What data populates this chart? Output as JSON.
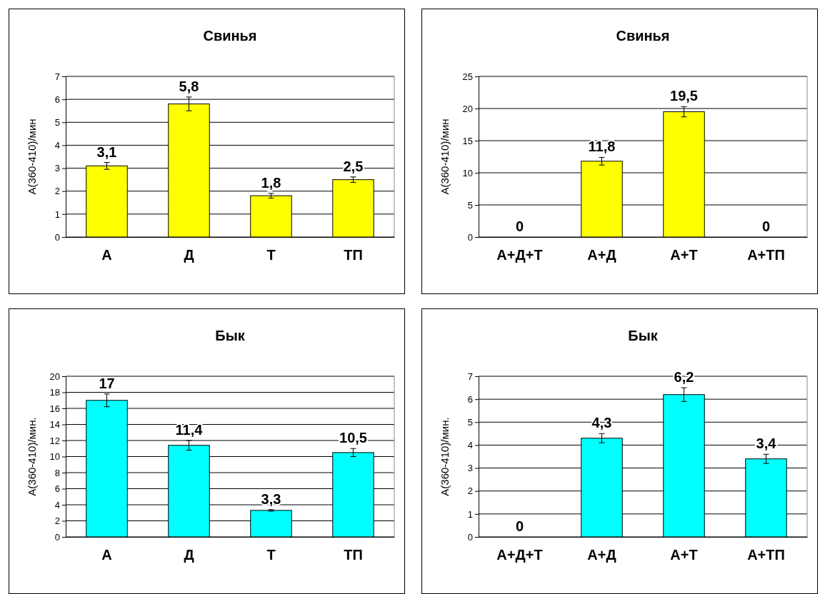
{
  "chart_data": [
    {
      "type": "bar",
      "title": "Свинья",
      "ylabel": "A(360-410)/мин",
      "categories": [
        "А",
        "Д",
        "Т",
        "ТП"
      ],
      "values": [
        3.1,
        5.8,
        1.8,
        2.5
      ],
      "errors": [
        0.15,
        0.3,
        0.1,
        0.12
      ],
      "value_labels": [
        "3,1",
        "5,8",
        "1,8",
        "2,5"
      ],
      "color": "#ffff00",
      "ylim": [
        0,
        7
      ],
      "yticks": [
        0,
        1,
        2,
        3,
        4,
        5,
        6,
        7
      ],
      "grid": "y"
    },
    {
      "type": "bar",
      "title": "Свинья",
      "ylabel": "A(360-410)/мин",
      "categories": [
        "А+Д+Т",
        "А+Д",
        "А+Т",
        "А+ТП"
      ],
      "values": [
        0,
        11.8,
        19.5,
        0
      ],
      "errors": [
        null,
        0.6,
        0.8,
        null
      ],
      "value_labels": [
        "0",
        "11,8",
        "19,5",
        "0"
      ],
      "color": "#ffff00",
      "ylim": [
        0,
        25
      ],
      "yticks": [
        0,
        5,
        10,
        15,
        20,
        25
      ],
      "grid": "y"
    },
    {
      "type": "bar",
      "title": "Бык",
      "ylabel": "A(360-410)/мин.",
      "categories": [
        "А",
        "Д",
        "Т",
        "ТП"
      ],
      "values": [
        17,
        11.4,
        3.3,
        10.5
      ],
      "errors": [
        0.8,
        0.6,
        0.1,
        0.5
      ],
      "value_labels": [
        "17",
        "11,4",
        "3,3",
        "10,5"
      ],
      "color": "#00ffff",
      "ylim": [
        0,
        20
      ],
      "yticks": [
        0,
        2,
        4,
        6,
        8,
        10,
        12,
        14,
        16,
        18,
        20
      ],
      "grid": "y"
    },
    {
      "type": "bar",
      "title": "Бык",
      "ylabel": "A(360-410)/мин.",
      "categories": [
        "А+Д+Т",
        "А+Д",
        "А+Т",
        "А+ТП"
      ],
      "values": [
        0,
        4.3,
        6.2,
        3.4
      ],
      "errors": [
        null,
        0.2,
        0.3,
        0.2
      ],
      "value_labels": [
        "0",
        "4,3",
        "6,2",
        "3,4"
      ],
      "color": "#00ffff",
      "ylim": [
        0,
        7
      ],
      "yticks": [
        0,
        1,
        2,
        3,
        4,
        5,
        6,
        7
      ],
      "grid": "y"
    }
  ]
}
